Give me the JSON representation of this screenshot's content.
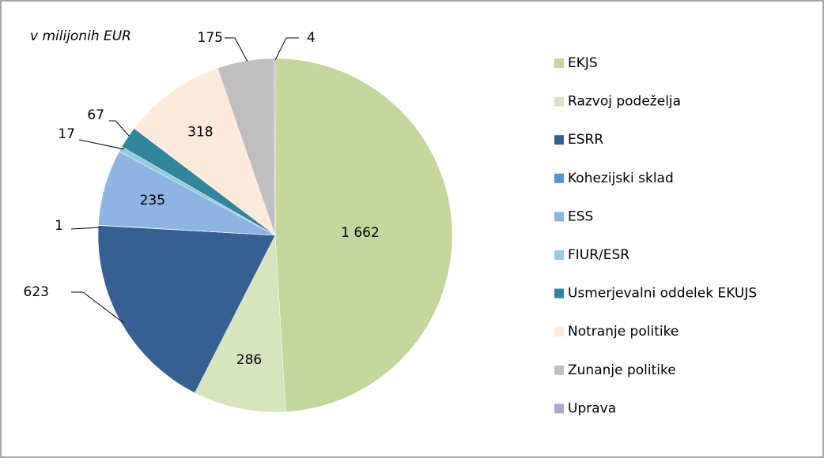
{
  "chart_data": {
    "type": "pie",
    "subtitle": "v milijonih EUR",
    "categories": [
      "EKJS",
      "Razvoj podeželja",
      "ESRR",
      "Kohezijski sklad",
      "ESS",
      "FIUR/ESR",
      "Usmerjevalni oddelek EKUJS",
      "Notranje politike",
      "Zunanje politike",
      "Uprava"
    ],
    "values": [
      1662,
      286,
      623,
      1,
      235,
      17,
      67,
      318,
      175,
      4
    ],
    "value_labels": [
      "1 662",
      "286",
      "623",
      "1",
      "235",
      "17",
      "67",
      "318",
      "175",
      "4"
    ],
    "colors": [
      "#c3d69b",
      "#d7e4bd",
      "#376092",
      "#558ed5",
      "#8eb4e3",
      "#93cddd",
      "#31859c",
      "#fdeada",
      "#bfbfbf",
      "#b3a2c7"
    ],
    "legend": "right"
  }
}
